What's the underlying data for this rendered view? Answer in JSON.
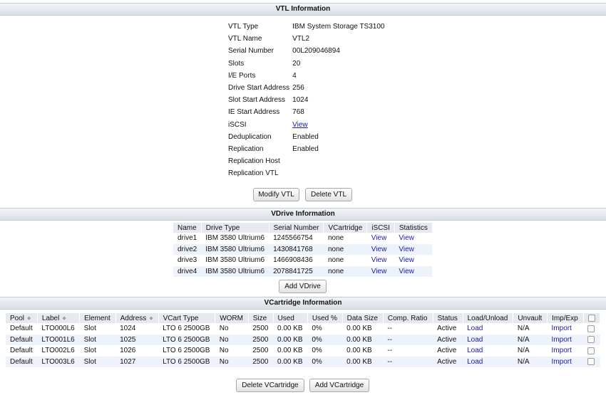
{
  "vtl": {
    "header": "VTL Information",
    "fields": [
      {
        "label": "VTL Type",
        "value": "IBM System Storage TS3100"
      },
      {
        "label": "VTL Name",
        "value": "VTL2"
      },
      {
        "label": "Serial Number",
        "value": "00L209046894"
      },
      {
        "label": "Slots",
        "value": "20"
      },
      {
        "label": "I/E Ports",
        "value": "4"
      },
      {
        "label": "Drive Start Address",
        "value": "256"
      },
      {
        "label": "Slot Start Address",
        "value": "1024"
      },
      {
        "label": "IE Start Address",
        "value": "768"
      },
      {
        "label": "iSCSI",
        "value": "View"
      },
      {
        "label": "Deduplication",
        "value": "Enabled"
      },
      {
        "label": "Replication",
        "value": "Enabled"
      },
      {
        "label": "Replication Host",
        "value": ""
      },
      {
        "label": "Replication VTL",
        "value": ""
      }
    ],
    "modify_label": "Modify VTL",
    "delete_label": "Delete VTL"
  },
  "vdrive": {
    "header": "VDrive Information",
    "columns": [
      "Name",
      "Drive Type",
      "Serial Number",
      "VCartridge",
      "iSCSI",
      "Statistics"
    ],
    "rows": [
      {
        "name": "drive1",
        "type": "IBM 3580 Ultrium6",
        "serial": "1245566754",
        "vcart": "none",
        "iscsi": "View",
        "stats": "View"
      },
      {
        "name": "drive2",
        "type": "IBM 3580 Ultrium6",
        "serial": "1430841768",
        "vcart": "none",
        "iscsi": "View",
        "stats": "View"
      },
      {
        "name": "drive3",
        "type": "IBM 3580 Ultrium6",
        "serial": "1466908436",
        "vcart": "none",
        "iscsi": "View",
        "stats": "View"
      },
      {
        "name": "drive4",
        "type": "IBM 3580 Ultrium6",
        "serial": "2078841725",
        "vcart": "none",
        "iscsi": "View",
        "stats": "View"
      }
    ],
    "add_label": "Add VDrive"
  },
  "vcart": {
    "header": "VCartridge Information",
    "columns": [
      "Pool",
      "Label",
      "Element",
      "Address",
      "VCart Type",
      "WORM",
      "Size",
      "Used",
      "Used %",
      "Data Size",
      "Comp. Ratio",
      "Status",
      "Load/Unload",
      "Unvault",
      "Imp/Exp"
    ],
    "rows": [
      {
        "pool": "Default",
        "label": "LTO000L6",
        "element": "Slot",
        "address": "1024",
        "type": "LTO 6 2500GB",
        "worm": "No",
        "size": "2500",
        "used": "0.00 KB",
        "used_pct": "0%",
        "data_size": "0.00 KB",
        "ratio": "--",
        "status": "Active",
        "load": "Load",
        "unvault": "N/A",
        "impexp": "Import"
      },
      {
        "pool": "Default",
        "label": "LTO001L6",
        "element": "Slot",
        "address": "1025",
        "type": "LTO 6 2500GB",
        "worm": "No",
        "size": "2500",
        "used": "0.00 KB",
        "used_pct": "0%",
        "data_size": "0.00 KB",
        "ratio": "--",
        "status": "Active",
        "load": "Load",
        "unvault": "N/A",
        "impexp": "Import"
      },
      {
        "pool": "Default",
        "label": "LTO002L6",
        "element": "Slot",
        "address": "1026",
        "type": "LTO 6 2500GB",
        "worm": "No",
        "size": "2500",
        "used": "0.00 KB",
        "used_pct": "0%",
        "data_size": "0.00 KB",
        "ratio": "--",
        "status": "Active",
        "load": "Load",
        "unvault": "N/A",
        "impexp": "Import"
      },
      {
        "pool": "Default",
        "label": "LTO003L6",
        "element": "Slot",
        "address": "1027",
        "type": "LTO 6 2500GB",
        "worm": "No",
        "size": "2500",
        "used": "0.00 KB",
        "used_pct": "0%",
        "data_size": "0.00 KB",
        "ratio": "--",
        "status": "Active",
        "load": "Load",
        "unvault": "N/A",
        "impexp": "Import"
      }
    ],
    "delete_label": "Delete VCartridge",
    "add_label": "Add VCartridge"
  },
  "icons": {
    "sort": "sort-arrows-icon",
    "checkbox": "checkbox-icon"
  },
  "colors": {
    "header_bg": "#d8dfe6",
    "link": "#1a1aa8",
    "row_alt": "#edf2fb"
  }
}
